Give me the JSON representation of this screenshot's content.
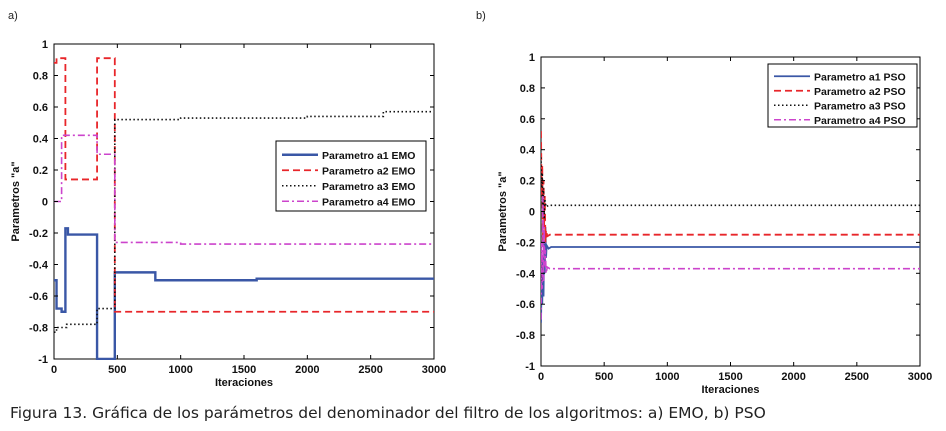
{
  "caption": "Figura 13. Gráfica de los parámetros del denominador del filtro de los algoritmos: a) EMO, b) PSO",
  "chart_data": [
    {
      "type": "line",
      "panel_label": "a)",
      "title": "",
      "xlabel": "Iteraciones",
      "ylabel": "Parametros \"a\"",
      "xlim": [
        0,
        3000
      ],
      "ylim": [
        -1,
        1
      ],
      "xticks": [
        0,
        500,
        1000,
        1500,
        2000,
        2500,
        3000
      ],
      "yticks": [
        -1,
        -0.8,
        -0.6,
        -0.4,
        -0.2,
        0,
        0.2,
        0.4,
        0.6,
        0.8,
        1
      ],
      "xtick_labels": [
        "0",
        "500",
        "1000",
        "1500",
        "2000",
        "2500",
        "3000"
      ],
      "ytick_labels": [
        "-1",
        "-0.8",
        "-0.6",
        "-0.4",
        "-0.2",
        "0",
        "0.2",
        "0.4",
        "0.6",
        "0.8",
        "1"
      ],
      "grid": false,
      "legend_position": "center-right",
      "series": [
        {
          "name": "Parametro a1 EMO",
          "color": "#3a57a6",
          "dash": "solid",
          "width": 2.4,
          "x": [
            0,
            20,
            20,
            60,
            60,
            90,
            90,
            110,
            110,
            340,
            340,
            480,
            480,
            800,
            800,
            1600,
            1600,
            3000
          ],
          "y": [
            -0.5,
            -0.5,
            -0.68,
            -0.68,
            -0.7,
            -0.7,
            -0.17,
            -0.17,
            -0.21,
            -0.21,
            -1.0,
            -1.0,
            -0.45,
            -0.45,
            -0.5,
            -0.5,
            -0.49,
            -0.49
          ]
        },
        {
          "name": "Parametro a2 EMO",
          "color": "#e8262a",
          "dash": "7,4",
          "width": 1.8,
          "x": [
            0,
            20,
            20,
            90,
            90,
            340,
            340,
            480,
            480,
            3000
          ],
          "y": [
            0.88,
            0.88,
            0.91,
            0.91,
            0.14,
            0.14,
            0.91,
            0.91,
            -0.7,
            -0.7
          ]
        },
        {
          "name": "Parametro a3 EMO",
          "color": "#111111",
          "dash": "1.5,2.5",
          "width": 1.6,
          "x": [
            0,
            20,
            20,
            100,
            100,
            340,
            340,
            480,
            480,
            1000,
            1000,
            2000,
            2000,
            2600,
            2600,
            3000
          ],
          "y": [
            -0.83,
            -0.83,
            -0.8,
            -0.8,
            -0.78,
            -0.78,
            -0.68,
            -0.68,
            0.52,
            0.52,
            0.53,
            0.53,
            0.54,
            0.54,
            0.57,
            0.57
          ]
        },
        {
          "name": "Parametro a4 EMO",
          "color": "#cc44cc",
          "dash": "7,3,2,3",
          "width": 1.6,
          "x": [
            0,
            60,
            60,
            340,
            340,
            480,
            480,
            1000,
            1000,
            3000
          ],
          "y": [
            0.0,
            0.0,
            0.42,
            0.42,
            0.3,
            0.3,
            -0.26,
            -0.26,
            -0.27,
            -0.27
          ]
        }
      ]
    },
    {
      "type": "line",
      "panel_label": "b)",
      "title": "",
      "xlabel": "Iteraciones",
      "ylabel": "Parametros \"a\"",
      "xlim": [
        0,
        3000
      ],
      "ylim": [
        -1,
        1
      ],
      "xticks": [
        0,
        500,
        1000,
        1500,
        2000,
        2500,
        3000
      ],
      "yticks": [
        -1,
        -0.8,
        -0.6,
        -0.4,
        -0.2,
        0,
        0.2,
        0.4,
        0.6,
        0.8,
        1
      ],
      "xtick_labels": [
        "0",
        "500",
        "1000",
        "1500",
        "2000",
        "2500",
        "3000"
      ],
      "ytick_labels": [
        "-1",
        "-0.8",
        "-0.6",
        "-0.4",
        "-0.2",
        "0",
        "0.2",
        "0.4",
        "0.6",
        "0.8",
        "1"
      ],
      "grid": false,
      "legend_position": "top-right",
      "series": [
        {
          "name": "Parametro a1 PSO",
          "color": "#3a57a6",
          "dash": "solid",
          "width": 1.8,
          "x": [
            0,
            5,
            10,
            15,
            20,
            25,
            30,
            35,
            40,
            45,
            60,
            80,
            3000
          ],
          "y": [
            -0.72,
            -0.45,
            -0.6,
            -0.3,
            -0.55,
            -0.2,
            -0.4,
            -0.1,
            -0.3,
            -0.22,
            -0.24,
            -0.23,
            -0.23
          ]
        },
        {
          "name": "Parametro a2 PSO",
          "color": "#e8262a",
          "dash": "7,4",
          "width": 1.8,
          "x": [
            0,
            5,
            10,
            15,
            20,
            25,
            30,
            35,
            40,
            50,
            70,
            3000
          ],
          "y": [
            0.52,
            0.1,
            0.3,
            -0.2,
            0.2,
            -0.1,
            0.1,
            -0.2,
            -0.12,
            -0.16,
            -0.15,
            -0.15
          ]
        },
        {
          "name": "Parametro a3 PSO",
          "color": "#111111",
          "dash": "1.5,2.5",
          "width": 1.6,
          "x": [
            0,
            5,
            10,
            15,
            20,
            25,
            30,
            40,
            60,
            3000
          ],
          "y": [
            0.35,
            0.15,
            0.25,
            0.0,
            0.15,
            -0.05,
            0.08,
            0.03,
            0.04,
            0.04
          ]
        },
        {
          "name": "Parametro a4 PSO",
          "color": "#cc44cc",
          "dash": "7,3,2,3",
          "width": 1.6,
          "x": [
            0,
            5,
            10,
            15,
            20,
            25,
            30,
            35,
            40,
            50,
            70,
            3000
          ],
          "y": [
            -0.7,
            -0.2,
            -0.5,
            0.1,
            -0.45,
            -0.1,
            -0.35,
            -0.25,
            -0.4,
            -0.36,
            -0.37,
            -0.37
          ]
        }
      ]
    }
  ]
}
